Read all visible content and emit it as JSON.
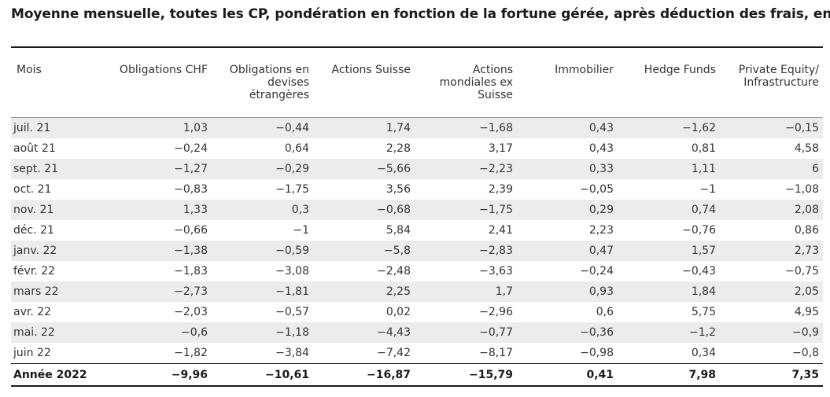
{
  "title": "Moyenne mensuelle, toutes les CP, pondération en fonction de la fortune gérée, après déduction des frais, en %",
  "table": {
    "headers": [
      "Mois",
      "Obligations CHF",
      "Obligations en devises étrangères",
      "Actions Suisse",
      "Actions mondiales ex Suisse",
      "Immobilier",
      "Hedge Funds",
      "Private Equity/ Infrastructure"
    ],
    "rows": [
      [
        "juil. 21",
        "1,03",
        "−0,44",
        "1,74",
        "−1,68",
        "0,43",
        "−1,62",
        "−0,15"
      ],
      [
        "août 21",
        "−0,24",
        "0,64",
        "2,28",
        "3,17",
        "0,43",
        "0,81",
        "4,58"
      ],
      [
        "sept. 21",
        "−1,27",
        "−0,29",
        "−5,66",
        "−2,23",
        "0,33",
        "1,11",
        "6"
      ],
      [
        "oct. 21",
        "−0,83",
        "−1,75",
        "3,56",
        "2,39",
        "−0,05",
        "−1",
        "−1,08"
      ],
      [
        "nov. 21",
        "1,33",
        "0,3",
        "−0,68",
        "−1,75",
        "0,29",
        "0,74",
        "2,08"
      ],
      [
        "déc. 21",
        "−0,66",
        "−1",
        "5,84",
        "2,41",
        "2,23",
        "−0,76",
        "0,86"
      ],
      [
        "janv. 22",
        "−1,38",
        "−0,59",
        "−5,8",
        "−2,83",
        "0,47",
        "1,57",
        "2,73"
      ],
      [
        "févr. 22",
        "−1,83",
        "−3,08",
        "−2,48",
        "−3,63",
        "−0,24",
        "−0,43",
        "−0,75"
      ],
      [
        "mars 22",
        "−2,73",
        "−1,81",
        "2,25",
        "1,7",
        "0,93",
        "1,84",
        "2,05"
      ],
      [
        "avr. 22",
        "−2,03",
        "−0,57",
        "0,02",
        "−2,96",
        "0,6",
        "5,75",
        "4,95"
      ],
      [
        "mai. 22",
        "−0,6",
        "−1,18",
        "−4,43",
        "−0,77",
        "−0,36",
        "−1,2",
        "−0,9"
      ],
      [
        "juin 22",
        "−1,82",
        "−3,84",
        "−7,42",
        "−8,17",
        "−0,98",
        "0,34",
        "−0,8"
      ]
    ],
    "total": [
      "Année 2022",
      "−9,96",
      "−10,61",
      "−16,87",
      "−15,79",
      "0,41",
      "7,98",
      "7,35"
    ]
  }
}
